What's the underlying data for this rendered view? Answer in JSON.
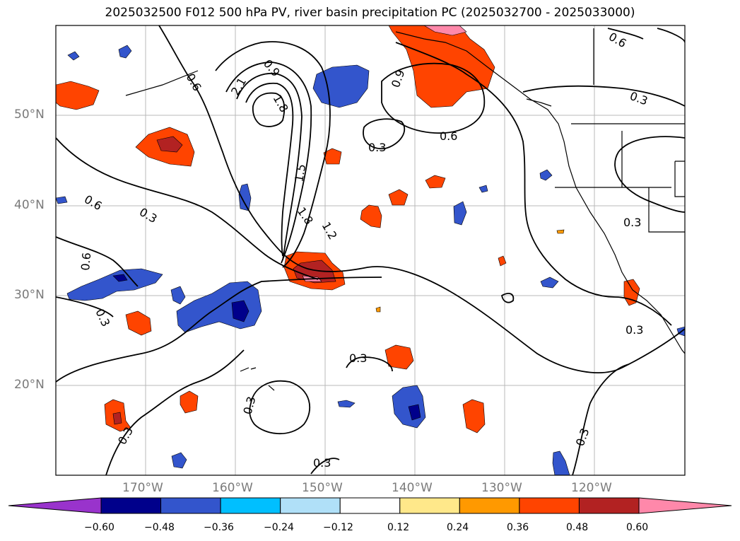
{
  "title": "2025032500 F012 500 hPa PV, river basin precipitation PC (2025032700 - 2025033000)",
  "lat_labels": [
    "50°N",
    "40°N",
    "30°N",
    "20°N"
  ],
  "lon_labels": [
    "170°W",
    "160°W",
    "150°W",
    "140°W",
    "130°W",
    "120°W"
  ],
  "contour_labels": [
    "0.6",
    "0.9",
    "2.1",
    "1.8",
    "1.5",
    "1.8",
    "1.2",
    "0.9",
    "0.6",
    "0.3",
    "0.6",
    "0.3",
    "0.3",
    "0.6",
    "0.3",
    "0.3",
    "0.3",
    "0.3",
    "0.3",
    "0.3",
    "0.3",
    "0.3",
    "0.6"
  ],
  "colorbar": {
    "tick_labels": [
      "−0.60",
      "−0.48",
      "−0.36",
      "−0.24",
      "−0.12",
      "0.12",
      "0.24",
      "0.36",
      "0.48",
      "0.60"
    ],
    "colors": [
      "#9933cc",
      "#00008b",
      "#3355cc",
      "#00bfff",
      "#b0e0f8",
      "#ffffff",
      "#ffe88a",
      "#ff9900",
      "#ff4400",
      "#b22222",
      "#ff88aa"
    ]
  }
}
